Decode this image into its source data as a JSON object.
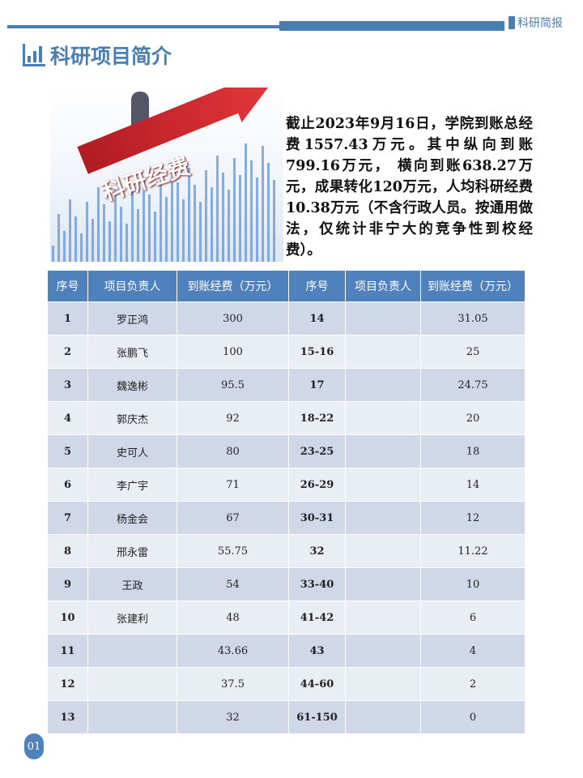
{
  "header": {
    "brand": "科研简报",
    "title": "科研项目简介"
  },
  "illustration": {
    "label": "科研经费"
  },
  "summary": "截止2023年9月16日，学院到账总经费1557.43万元。其中纵向到账799.16万元，  横向到账638.27万元，成果转化120万元，人均科研经费10.38万元（不含行政人员。按通用做法，仅统计非宁大的竞争性到校经费）。",
  "table": {
    "headers": [
      "序号",
      "项目负责人",
      "到账经费（万元）",
      "序号",
      "项目负责人",
      "到账经费（万元）"
    ],
    "rows": [
      [
        "1",
        "罗正鸿",
        "300",
        "14",
        "",
        "31.05"
      ],
      [
        "2",
        "张鹏飞",
        "100",
        "15-16",
        "",
        "25"
      ],
      [
        "3",
        "魏逸彬",
        "95.5",
        "17",
        "",
        "24.75"
      ],
      [
        "4",
        "郭庆杰",
        "92",
        "18-22",
        "",
        "20"
      ],
      [
        "5",
        "史可人",
        "80",
        "23-25",
        "",
        "18"
      ],
      [
        "6",
        "李广宇",
        "71",
        "26-29",
        "",
        "14"
      ],
      [
        "7",
        "杨金会",
        "67",
        "30-31",
        "",
        "12"
      ],
      [
        "8",
        "邢永雷",
        "55.75",
        "32",
        "",
        "11.22"
      ],
      [
        "9",
        "王政",
        "54",
        "33-40",
        "",
        "10"
      ],
      [
        "10",
        "张建利",
        "48",
        "41-42",
        "",
        "6"
      ],
      [
        "11",
        "",
        "43.66",
        "43",
        "",
        "4"
      ],
      [
        "12",
        "",
        "37.5",
        "44-60",
        "",
        "2"
      ],
      [
        "13",
        "",
        "32",
        "61-150",
        "",
        "0"
      ]
    ]
  },
  "page_number": "01",
  "colors": {
    "accent": "#4a7eb3",
    "header_bg": "#4f81bd",
    "row_odd": "#d0d8e8",
    "row_even": "#e9edf4"
  }
}
